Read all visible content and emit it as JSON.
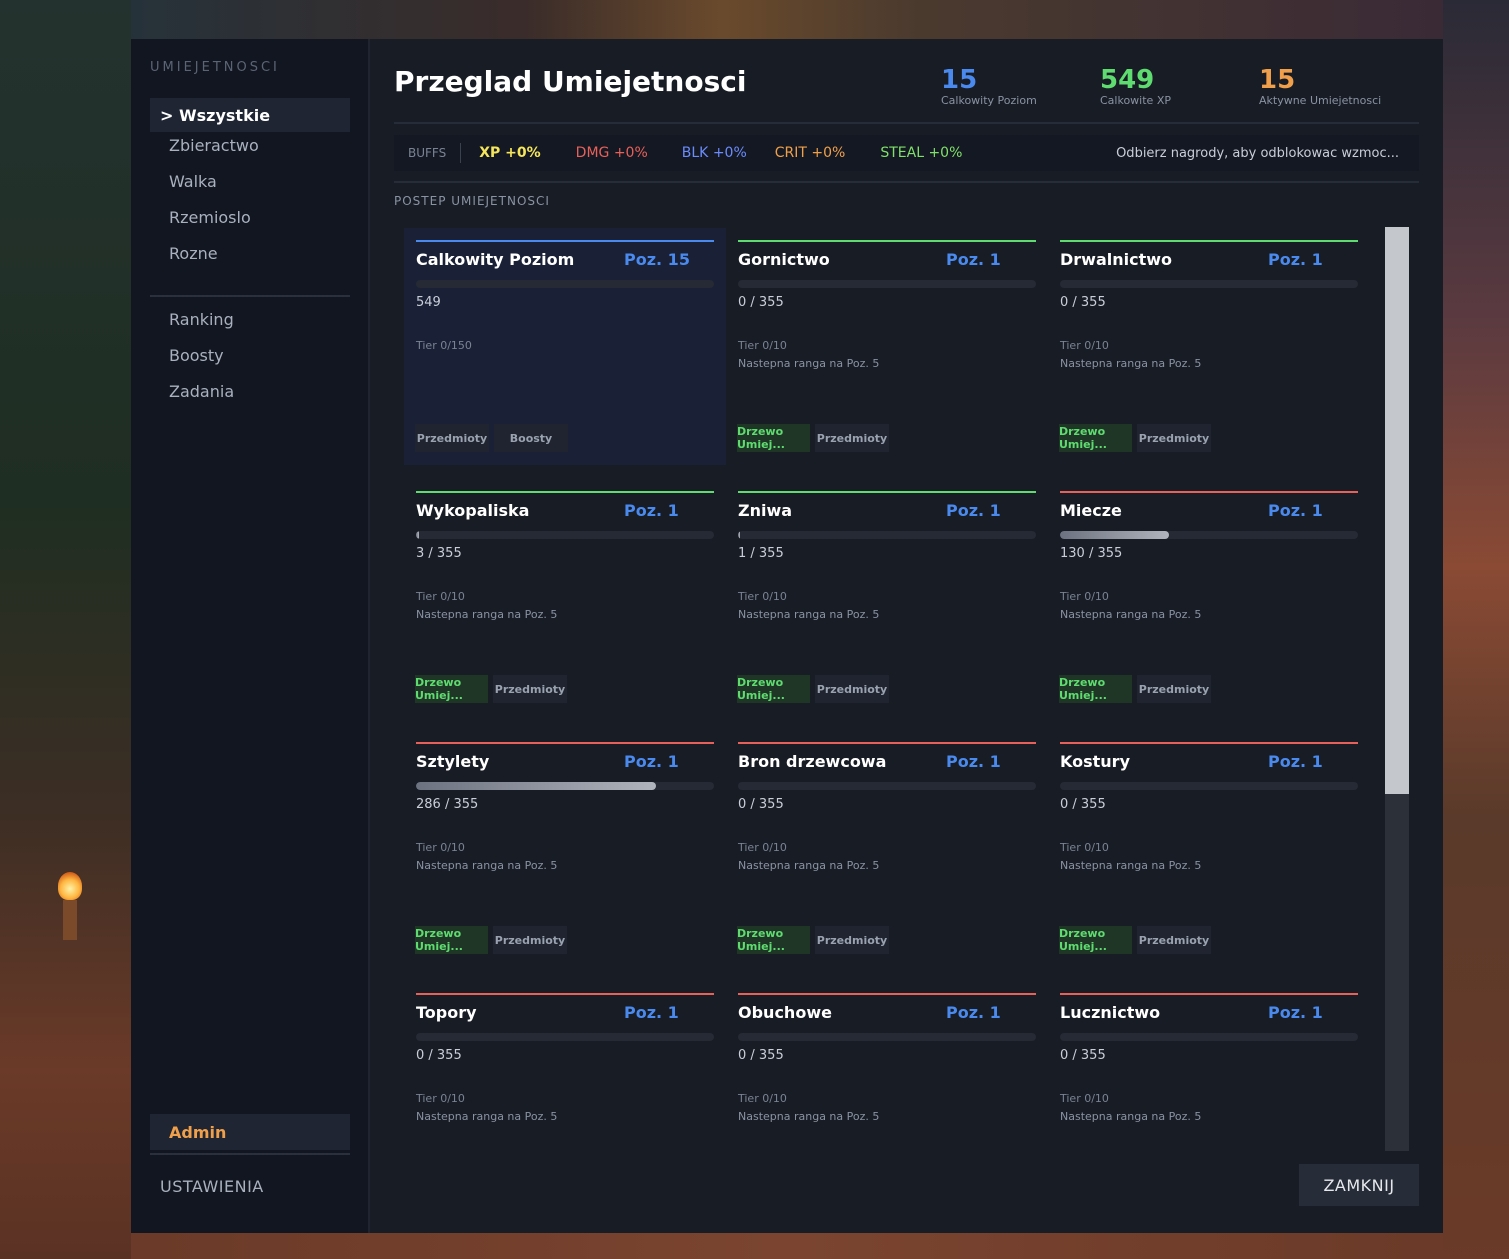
{
  "sidebar": {
    "title": "UMIEJETNOSCI",
    "items": [
      {
        "label": "> Wszystkie"
      },
      {
        "label": "Zbieractwo"
      },
      {
        "label": "Walka"
      },
      {
        "label": "Rzemioslo"
      },
      {
        "label": "Rozne"
      },
      {
        "label": "Ranking"
      },
      {
        "label": "Boosty"
      },
      {
        "label": "Zadania"
      }
    ],
    "admin": "Admin",
    "settings": "USTAWIENIA"
  },
  "header": {
    "title": "Przeglad Umiejetnosci",
    "stats": [
      {
        "value": "15",
        "label": "Calkowity Poziom",
        "color": "#4a8aef"
      },
      {
        "value": "549",
        "label": "Calkowite XP",
        "color": "#5fdc70"
      },
      {
        "value": "15",
        "label": "Aktywne Umiejetnosci",
        "color": "#f0a04a"
      }
    ]
  },
  "buffs": {
    "label": "BUFFS",
    "items": [
      {
        "text": "XP +0%",
        "color": "#f5e65a"
      },
      {
        "text": "DMG +0%",
        "color": "#e8605a"
      },
      {
        "text": "BLK +0%",
        "color": "#6a8cff"
      },
      {
        "text": "CRIT +0%",
        "color": "#f0a04a"
      },
      {
        "text": "STEAL +0%",
        "color": "#7fe06a"
      }
    ],
    "note": "Odbierz nagrody, aby odblokowac wzmoc..."
  },
  "section_label": "POSTEP UMIEJETNOSCI",
  "cards": [
    {
      "name": "Calkowity Poziom",
      "level": "Poz. 15",
      "xp": "549",
      "tier": "Tier 0/150",
      "next": "",
      "progress": 0,
      "accent": "#4a8aef",
      "btn1": "Przedmioty",
      "btn2": "Boosty",
      "btn1_style": "grey",
      "highlight": true
    },
    {
      "name": "Gornictwo",
      "level": "Poz. 1",
      "xp": "0 / 355",
      "tier": "Tier 0/10",
      "next": "Nastepna ranga na Poz. 5",
      "progress": 0,
      "accent": "#5fdc70",
      "btn1": "Drzewo Umiej...",
      "btn2": "Przedmioty",
      "btn1_style": "green"
    },
    {
      "name": "Drwalnictwo",
      "level": "Poz. 1",
      "xp": "0 / 355",
      "tier": "Tier 0/10",
      "next": "Nastepna ranga na Poz. 5",
      "progress": 0,
      "accent": "#5fdc70",
      "btn1": "Drzewo Umiej...",
      "btn2": "Przedmioty",
      "btn1_style": "green"
    },
    {
      "name": "Wykopaliska",
      "level": "Poz. 1",
      "xp": "3 / 355",
      "tier": "Tier 0/10",
      "next": "Nastepna ranga na Poz. 5",
      "progress": 0.0085,
      "accent": "#5fdc70",
      "btn1": "Drzewo Umiej...",
      "btn2": "Przedmioty",
      "btn1_style": "green"
    },
    {
      "name": "Zniwa",
      "level": "Poz. 1",
      "xp": "1 / 355",
      "tier": "Tier 0/10",
      "next": "Nastepna ranga na Poz. 5",
      "progress": 0.0028,
      "accent": "#5fdc70",
      "btn1": "Drzewo Umiej...",
      "btn2": "Przedmioty",
      "btn1_style": "green"
    },
    {
      "name": "Miecze",
      "level": "Poz. 1",
      "xp": "130 / 355",
      "tier": "Tier 0/10",
      "next": "Nastepna ranga na Poz. 5",
      "progress": 0.366,
      "accent": "#e8605a",
      "btn1": "Drzewo Umiej...",
      "btn2": "Przedmioty",
      "btn1_style": "green"
    },
    {
      "name": "Sztylety",
      "level": "Poz. 1",
      "xp": "286 / 355",
      "tier": "Tier 0/10",
      "next": "Nastepna ranga na Poz. 5",
      "progress": 0.806,
      "accent": "#e8605a",
      "btn1": "Drzewo Umiej...",
      "btn2": "Przedmioty",
      "btn1_style": "green"
    },
    {
      "name": "Bron drzewcowa",
      "level": "Poz. 1",
      "xp": "0 / 355",
      "tier": "Tier 0/10",
      "next": "Nastepna ranga na Poz. 5",
      "progress": 0,
      "accent": "#e8605a",
      "btn1": "Drzewo Umiej...",
      "btn2": "Przedmioty",
      "btn1_style": "green"
    },
    {
      "name": "Kostury",
      "level": "Poz. 1",
      "xp": "0 / 355",
      "tier": "Tier 0/10",
      "next": "Nastepna ranga na Poz. 5",
      "progress": 0,
      "accent": "#e8605a",
      "btn1": "Drzewo Umiej...",
      "btn2": "Przedmioty",
      "btn1_style": "green"
    },
    {
      "name": "Topory",
      "level": "Poz. 1",
      "xp": "0 / 355",
      "tier": "Tier 0/10",
      "next": "Nastepna ranga na Poz. 5",
      "progress": 0,
      "accent": "#e8605a"
    },
    {
      "name": "Obuchowe",
      "level": "Poz. 1",
      "xp": "0 / 355",
      "tier": "Tier 0/10",
      "next": "Nastepna ranga na Poz. 5",
      "progress": 0,
      "accent": "#e8605a"
    },
    {
      "name": "Lucznictwo",
      "level": "Poz. 1",
      "xp": "0 / 355",
      "tier": "Tier 0/10",
      "next": "Nastepna ranga na Poz. 5",
      "progress": 0,
      "accent": "#e8605a"
    }
  ],
  "close_button": "ZAMKNIJ"
}
